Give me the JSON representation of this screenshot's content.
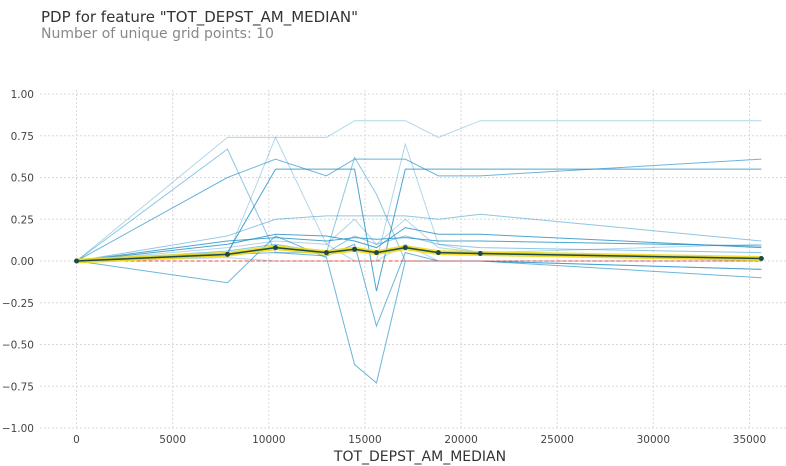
{
  "chart_data": {
    "type": "line",
    "title": "PDP for feature \"TOT_DEPST_AM_MEDIAN\"",
    "subtitle": "Number of unique grid points: 10",
    "xlabel": "TOT_DEPST_AM_MEDIAN",
    "ylabel": "",
    "xlim": [
      -1900,
      36900
    ],
    "ylim": [
      -1.0,
      1.0
    ],
    "xticks": [
      0,
      5000,
      10000,
      15000,
      20000,
      25000,
      30000,
      35000
    ],
    "xtick_labels": [
      "0",
      "5000",
      "10000",
      "15000",
      "20000",
      "25000",
      "30000",
      "35000"
    ],
    "yticks": [
      1.0,
      0.75,
      0.5,
      0.25,
      0.0,
      -0.25,
      -0.5,
      -0.75,
      -1.0
    ],
    "ytick_labels": [
      "1.00",
      "0.75",
      "0.50",
      "0.25",
      "0.00",
      "−0.25",
      "−0.50",
      "−0.75",
      "−1.00"
    ],
    "grid": true,
    "x": [
      0,
      7850,
      10350,
      13000,
      14460,
      15600,
      17100,
      18820,
      21000,
      35620
    ],
    "ice_lines": [
      [
        0,
        0.74,
        0.74,
        0.74,
        0.84,
        0.84,
        0.84,
        0.74,
        0.84,
        0.84
      ],
      [
        0,
        0.67,
        0.05,
        0.05,
        0.62,
        0.4,
        0.0,
        0.0,
        0.0,
        -0.05
      ],
      [
        0,
        0.5,
        0.61,
        0.51,
        0.61,
        0.61,
        0.61,
        0.51,
        0.51,
        0.61
      ],
      [
        0,
        0.05,
        0.55,
        0.55,
        0.55,
        -0.18,
        0.55,
        0.55,
        0.55,
        0.55
      ],
      [
        0,
        0.03,
        0.74,
        0.1,
        0.0,
        0.0,
        0.7,
        0.1,
        0.05,
        0.1
      ],
      [
        0,
        0.15,
        0.25,
        0.27,
        0.27,
        0.27,
        0.27,
        0.25,
        0.28,
        0.12
      ],
      [
        0,
        -0.13,
        0.15,
        0.02,
        -0.62,
        -0.73,
        0.0,
        0.0,
        0.0,
        -0.1
      ],
      [
        0,
        0.1,
        0.16,
        0.15,
        0.12,
        0.08,
        0.2,
        0.16,
        0.16,
        0.08
      ],
      [
        0,
        0.08,
        0.12,
        0.1,
        0.25,
        0.1,
        0.25,
        0.08,
        0.05,
        0.0
      ],
      [
        0,
        0.06,
        0.1,
        0.05,
        0.15,
        0.1,
        0.15,
        0.1,
        0.08,
        0.05
      ],
      [
        0,
        0.04,
        0.05,
        0.03,
        0.1,
        -0.39,
        0.05,
        0.0,
        0.0,
        -0.05
      ],
      [
        0,
        0.12,
        0.14,
        0.12,
        0.14,
        0.13,
        0.14,
        0.12,
        0.12,
        0.09
      ],
      [
        0,
        0.02,
        0.0,
        0.0,
        0.0,
        0.0,
        0.1,
        0.0,
        0.0,
        0.0
      ]
    ],
    "pdp_line": [
      0,
      0.04,
      0.08,
      0.05,
      0.07,
      0.05,
      0.08,
      0.05,
      0.045,
      0.015
    ],
    "colors": {
      "ice": "#1f8dc4",
      "pdp": "#1a4a4a",
      "pdp_band": "#f0d81c",
      "zero": "#ec4a3a",
      "grid": "#d8d8d8"
    }
  }
}
